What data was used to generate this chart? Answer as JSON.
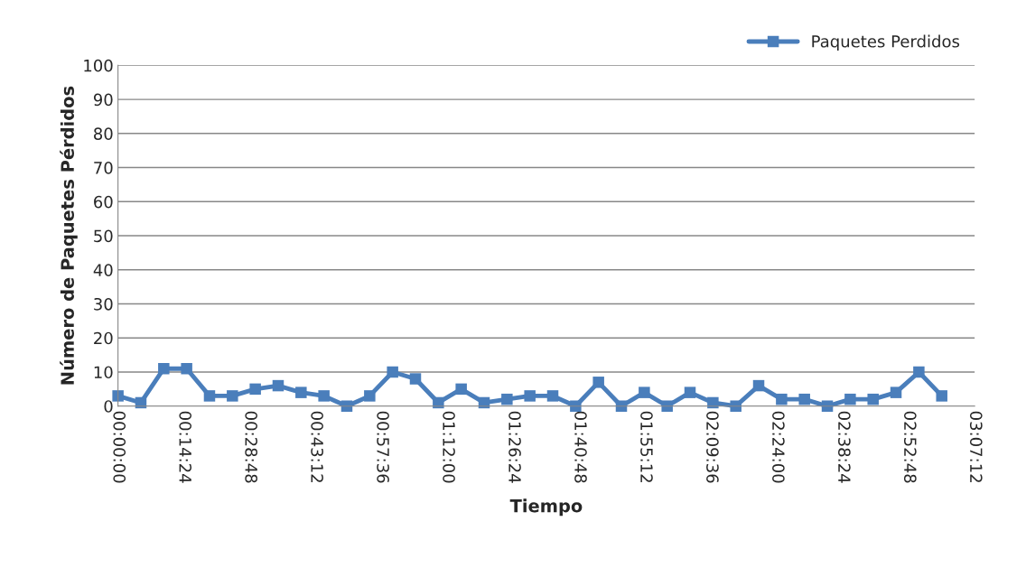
{
  "chart_data": {
    "type": "line",
    "xlabel": "Tiempo",
    "ylabel": "Número de Paquetes Pérdidos",
    "x": [
      0,
      0.0833,
      0.1667,
      0.25,
      0.3333,
      0.4167,
      0.5,
      0.5833,
      0.6667,
      0.75,
      0.8333,
      0.9167,
      1,
      1.0833,
      1.1667,
      1.25,
      1.3333,
      1.4167,
      1.5,
      1.5833,
      1.6667,
      1.75,
      1.8333,
      1.9167,
      2,
      2.0833,
      2.1667,
      2.25,
      2.3333,
      2.4167,
      2.5,
      2.5833,
      2.6667,
      2.75,
      2.8333,
      2.9167,
      3
    ],
    "series": [
      {
        "name": "Paquetes Perdidos",
        "color": "#4a7ebb",
        "values": [
          3,
          1,
          11,
          11,
          3,
          3,
          5,
          6,
          4,
          3,
          0,
          3,
          10,
          8,
          1,
          5,
          1,
          2,
          3,
          3,
          0,
          7,
          0,
          4,
          0,
          4,
          1,
          0,
          6,
          2,
          2,
          0,
          2,
          2,
          4,
          10,
          3
        ]
      }
    ],
    "xlim": [
      0,
      3.12
    ],
    "xticks": [
      {
        "value": 0,
        "label": "00:00:00"
      },
      {
        "value": 0.24,
        "label": "00:14:24"
      },
      {
        "value": 0.48,
        "label": "00:28:48"
      },
      {
        "value": 0.72,
        "label": "00:43:12"
      },
      {
        "value": 0.96,
        "label": "00:57:36"
      },
      {
        "value": 1.2,
        "label": "01:12:00"
      },
      {
        "value": 1.44,
        "label": "01:26:24"
      },
      {
        "value": 1.68,
        "label": "01:40:48"
      },
      {
        "value": 1.92,
        "label": "01:55:12"
      },
      {
        "value": 2.16,
        "label": "02:09:36"
      },
      {
        "value": 2.4,
        "label": "02:24:00"
      },
      {
        "value": 2.64,
        "label": "02:38:24"
      },
      {
        "value": 2.88,
        "label": "02:52:48"
      },
      {
        "value": 3.12,
        "label": "03:07:12"
      }
    ],
    "ylim": [
      0,
      100
    ],
    "yticks": [
      0,
      10,
      20,
      30,
      40,
      50,
      60,
      70,
      80,
      90,
      100
    ],
    "grid": "y",
    "legend": "top right",
    "marker": "square",
    "line_style": "solid"
  }
}
